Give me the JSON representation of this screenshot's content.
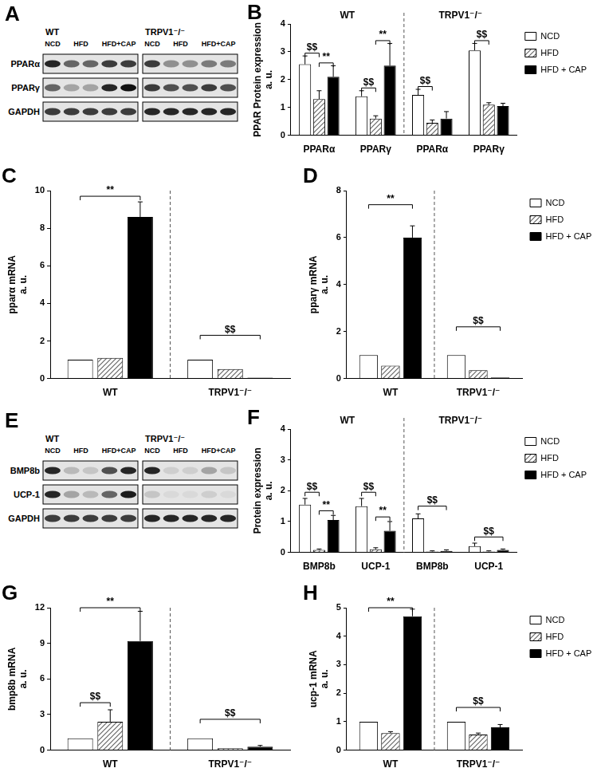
{
  "chart_data": [
    {
      "panel": "B",
      "type": "bar",
      "ylabel": [
        "PPAR Protein expression",
        "a. u."
      ],
      "groups": [
        "WT",
        "TRPV1⁻/⁻"
      ],
      "categories": [
        "PPARα",
        "PPARγ",
        "PPARα",
        "PPARγ"
      ],
      "series": [
        {
          "name": "NCD",
          "color": "#ffffff",
          "values": [
            2.55,
            1.4,
            1.45,
            3.05
          ],
          "errors": [
            0.3,
            0.2,
            0.2,
            0.25
          ]
        },
        {
          "name": "HFD",
          "color": "#666666",
          "values": [
            1.3,
            0.6,
            0.45,
            1.1
          ],
          "errors": [
            0.3,
            0.1,
            0.1,
            0.07
          ]
        },
        {
          "name": "HFD + CAP",
          "color": "#000000",
          "values": [
            2.1,
            2.5,
            0.6,
            1.05
          ],
          "errors": [
            0.4,
            0.8,
            0.25,
            0.1
          ]
        }
      ],
      "ylim": [
        0,
        4
      ],
      "yticks": [
        0,
        1,
        2,
        3,
        4
      ],
      "grid": false,
      "legend": "right",
      "annotations": [
        {
          "text": "$$",
          "from": [
            0,
            0
          ],
          "to": [
            0,
            1
          ],
          "y": 2.95
        },
        {
          "text": "**",
          "from": [
            0,
            1
          ],
          "to": [
            0,
            2
          ],
          "y": 2.6
        },
        {
          "text": "$$",
          "from": [
            1,
            0
          ],
          "to": [
            1,
            1
          ],
          "y": 1.7
        },
        {
          "text": "**",
          "from": [
            1,
            1
          ],
          "to": [
            1,
            2
          ],
          "y": 3.4
        },
        {
          "text": "$$",
          "from": [
            2,
            0
          ],
          "to": [
            2,
            1
          ],
          "y": 1.75
        },
        {
          "text": "$$",
          "from": [
            3,
            0
          ],
          "to": [
            3,
            1
          ],
          "y": 3.4
        }
      ]
    },
    {
      "panel": "C",
      "type": "bar",
      "ylabel": [
        "pparα mRNA",
        "a. u."
      ],
      "categories": [
        "WT",
        "TRPV1⁻/⁻"
      ],
      "series": [
        {
          "name": "NCD",
          "color": "#ffffff",
          "values": [
            1,
            1
          ],
          "errors": [
            null,
            null
          ]
        },
        {
          "name": "HFD",
          "color": "#666666",
          "values": [
            1.1,
            0.5
          ],
          "errors": [
            null,
            null
          ]
        },
        {
          "name": "HFD + CAP",
          "color": "#000000",
          "values": [
            8.6,
            0.05
          ],
          "errors": [
            0.8,
            null
          ]
        }
      ],
      "ylim": [
        0,
        10
      ],
      "yticks": [
        0,
        2,
        4,
        6,
        8,
        10
      ],
      "grid": false,
      "annotations": [
        {
          "text": "**",
          "from": [
            0,
            0
          ],
          "to": [
            0,
            2
          ],
          "y": 9.7
        },
        {
          "text": "$$",
          "from": [
            1,
            0
          ],
          "to": [
            1,
            2
          ],
          "y": 2.3
        }
      ]
    },
    {
      "panel": "D",
      "type": "bar",
      "ylabel": [
        "pparγ mRNA",
        "a. u."
      ],
      "categories": [
        "WT",
        "TRPV1⁻/⁻"
      ],
      "series": [
        {
          "name": "NCD",
          "color": "#ffffff",
          "values": [
            1,
            1
          ],
          "errors": [
            null,
            null
          ]
        },
        {
          "name": "HFD",
          "color": "#666666",
          "values": [
            0.55,
            0.35
          ],
          "errors": [
            null,
            null
          ]
        },
        {
          "name": "HFD + CAP",
          "color": "#000000",
          "values": [
            6.0,
            0.05
          ],
          "errors": [
            0.5,
            null
          ]
        }
      ],
      "ylim": [
        0,
        8
      ],
      "yticks": [
        0,
        2,
        4,
        6,
        8
      ],
      "grid": false,
      "legend": "right",
      "annotations": [
        {
          "text": "**",
          "from": [
            0,
            0
          ],
          "to": [
            0,
            2
          ],
          "y": 7.4
        },
        {
          "text": "$$",
          "from": [
            1,
            0
          ],
          "to": [
            1,
            2
          ],
          "y": 2.2
        }
      ]
    },
    {
      "panel": "F",
      "type": "bar",
      "ylabel": [
        "Protein expression",
        "a. u."
      ],
      "groups": [
        "WT",
        "TRPV1⁻/⁻"
      ],
      "categories": [
        "BMP8b",
        "UCP-1",
        "BMP8b",
        "UCP-1"
      ],
      "series": [
        {
          "name": "NCD",
          "color": "#ffffff",
          "values": [
            1.55,
            1.5,
            1.1,
            0.2
          ],
          "errors": [
            0.2,
            0.25,
            0.15,
            0.1
          ]
        },
        {
          "name": "HFD",
          "color": "#666666",
          "values": [
            0.08,
            0.1,
            0.03,
            0.03
          ],
          "errors": [
            0.03,
            0.05,
            0.02,
            0.02
          ]
        },
        {
          "name": "HFD + CAP",
          "color": "#000000",
          "values": [
            1.05,
            0.7,
            0.05,
            0.08
          ],
          "errors": [
            0.15,
            0.3,
            0.03,
            0.03
          ]
        }
      ],
      "ylim": [
        0,
        4
      ],
      "yticks": [
        0,
        1,
        2,
        3,
        4
      ],
      "grid": false,
      "legend": "right",
      "annotations": [
        {
          "text": "$$",
          "from": [
            0,
            0
          ],
          "to": [
            0,
            1
          ],
          "y": 1.95
        },
        {
          "text": "**",
          "from": [
            0,
            1
          ],
          "to": [
            0,
            2
          ],
          "y": 1.35
        },
        {
          "text": "$$",
          "from": [
            1,
            0
          ],
          "to": [
            1,
            1
          ],
          "y": 1.95
        },
        {
          "text": "**",
          "from": [
            1,
            1
          ],
          "to": [
            1,
            2
          ],
          "y": 1.15
        },
        {
          "text": "$$",
          "from": [
            2,
            0
          ],
          "to": [
            2,
            2
          ],
          "y": 1.5
        },
        {
          "text": "$$",
          "from": [
            3,
            0
          ],
          "to": [
            3,
            2
          ],
          "y": 0.5
        }
      ]
    },
    {
      "panel": "G",
      "type": "bar",
      "ylabel": [
        "bmp8b mRNA",
        "a. u."
      ],
      "categories": [
        "WT",
        "TRPV1⁻/⁻"
      ],
      "series": [
        {
          "name": "NCD",
          "color": "#ffffff",
          "values": [
            1,
            1
          ],
          "errors": [
            null,
            null
          ]
        },
        {
          "name": "HFD",
          "color": "#666666",
          "values": [
            2.4,
            0.15
          ],
          "errors": [
            1.0,
            null
          ]
        },
        {
          "name": "HFD + CAP",
          "color": "#000000",
          "values": [
            9.2,
            0.3
          ],
          "errors": [
            2.5,
            0.1
          ]
        }
      ],
      "ylim": [
        0,
        12
      ],
      "yticks": [
        0,
        3,
        6,
        9,
        12
      ],
      "grid": false,
      "annotations": [
        {
          "text": "**",
          "from": [
            0,
            0
          ],
          "to": [
            0,
            2
          ],
          "y": 12
        },
        {
          "text": "$$",
          "from": [
            0,
            0
          ],
          "to": [
            0,
            1
          ],
          "y": 4.0
        },
        {
          "text": "$$",
          "from": [
            1,
            0
          ],
          "to": [
            1,
            2
          ],
          "y": 2.6
        }
      ]
    },
    {
      "panel": "H",
      "type": "bar",
      "ylabel": [
        "ucp-1 mRNA",
        "a. u."
      ],
      "categories": [
        "WT",
        "TRPV1⁻/⁻"
      ],
      "series": [
        {
          "name": "NCD",
          "color": "#ffffff",
          "values": [
            1,
            1
          ],
          "errors": [
            null,
            null
          ]
        },
        {
          "name": "HFD",
          "color": "#666666",
          "values": [
            0.6,
            0.55
          ],
          "errors": [
            0.05,
            0.05
          ]
        },
        {
          "name": "HFD + CAP",
          "color": "#000000",
          "values": [
            4.7,
            0.8
          ],
          "errors": [
            0.25,
            0.1
          ]
        }
      ],
      "ylim": [
        0,
        5
      ],
      "yticks": [
        0,
        1,
        2,
        3,
        4,
        5
      ],
      "grid": false,
      "legend": "right",
      "annotations": [
        {
          "text": "**",
          "from": [
            0,
            0
          ],
          "to": [
            0,
            2
          ],
          "y": 5
        },
        {
          "text": "$$",
          "from": [
            1,
            0
          ],
          "to": [
            1,
            2
          ],
          "y": 1.5
        }
      ]
    }
  ],
  "blots": [
    {
      "panel": "A",
      "groups": [
        {
          "label": "WT",
          "conditions": [
            {
              "label": "NCD",
              "lanes": 1
            },
            {
              "label": "HFD",
              "lanes": 2
            },
            {
              "label": "HFD+CAP",
              "lanes": 2
            }
          ]
        },
        {
          "label": "TRPV1⁻/⁻",
          "conditions": [
            {
              "label": "NCD",
              "lanes": 1
            },
            {
              "label": "HFD",
              "lanes": 2
            },
            {
              "label": "HFD+CAP",
              "lanes": 2
            }
          ]
        }
      ],
      "rows": [
        {
          "label": "PPARα",
          "intensity": [
            [
              0.9,
              0.6,
              0.6,
              0.8,
              0.8
            ],
            [
              0.8,
              0.4,
              0.4,
              0.5,
              0.5
            ]
          ]
        },
        {
          "label": "PPARγ",
          "intensity": [
            [
              0.6,
              0.3,
              0.3,
              0.9,
              1.0
            ],
            [
              0.8,
              0.7,
              0.7,
              0.8,
              0.7
            ]
          ]
        },
        {
          "label": "GAPDH",
          "intensity": [
            [
              0.8,
              0.8,
              0.8,
              0.8,
              0.8
            ],
            [
              0.9,
              0.9,
              0.9,
              0.9,
              0.9
            ]
          ]
        }
      ]
    },
    {
      "panel": "E",
      "groups": [
        {
          "label": "WT",
          "conditions": [
            {
              "label": "NCD",
              "lanes": 1
            },
            {
              "label": "HFD",
              "lanes": 2
            },
            {
              "label": "HFD+CAP",
              "lanes": 2
            }
          ]
        },
        {
          "label": "TRPV1⁻/⁻",
          "conditions": [
            {
              "label": "NCD",
              "lanes": 1
            },
            {
              "label": "HFD",
              "lanes": 2
            },
            {
              "label": "HFD+CAP",
              "lanes": 2
            }
          ]
        }
      ],
      "rows": [
        {
          "label": "BMP8b",
          "intensity": [
            [
              0.9,
              0.2,
              0.15,
              0.7,
              0.9
            ],
            [
              0.9,
              0.1,
              0.1,
              0.3,
              0.15
            ]
          ]
        },
        {
          "label": "UCP-1",
          "intensity": [
            [
              0.9,
              0.3,
              0.2,
              0.6,
              0.95
            ],
            [
              0.15,
              0.05,
              0.05,
              0.1,
              0.05
            ]
          ]
        },
        {
          "label": "GAPDH",
          "intensity": [
            [
              0.8,
              0.8,
              0.8,
              0.8,
              0.8
            ],
            [
              0.9,
              0.9,
              0.9,
              0.9,
              0.9
            ]
          ]
        }
      ]
    }
  ]
}
